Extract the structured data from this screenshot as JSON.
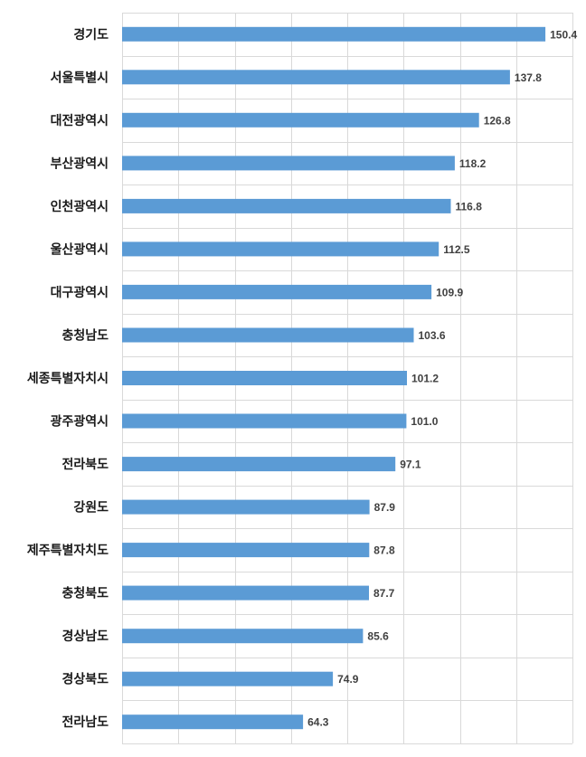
{
  "chart_data": {
    "type": "bar",
    "orientation": "horizontal",
    "categories": [
      "경기도",
      "서울특별시",
      "대전광역시",
      "부산광역시",
      "인천광역시",
      "울산광역시",
      "대구광역시",
      "충청남도",
      "세종특별자치시",
      "광주광역시",
      "전라북도",
      "강원도",
      "제주특별자치도",
      "충청북도",
      "경상남도",
      "경상북도",
      "전라남도"
    ],
    "values": [
      150.4,
      137.8,
      126.8,
      118.2,
      116.8,
      112.5,
      109.9,
      103.6,
      101.2,
      101.0,
      97.1,
      87.9,
      87.8,
      87.7,
      85.6,
      74.9,
      64.3
    ],
    "value_labels": [
      "150.4",
      "137.8",
      "126.8",
      "118.2",
      "116.8",
      "112.5",
      "109.9",
      "103.6",
      "101.2",
      "101.0",
      "97.1",
      "87.9",
      "87.8",
      "87.7",
      "85.6",
      "74.9",
      "64.3"
    ],
    "xlim": [
      0,
      160
    ],
    "grid_step": 20,
    "grid": true,
    "legend": "none",
    "bar_color": "#5b9bd5",
    "title": "",
    "xlabel": "",
    "ylabel": ""
  }
}
